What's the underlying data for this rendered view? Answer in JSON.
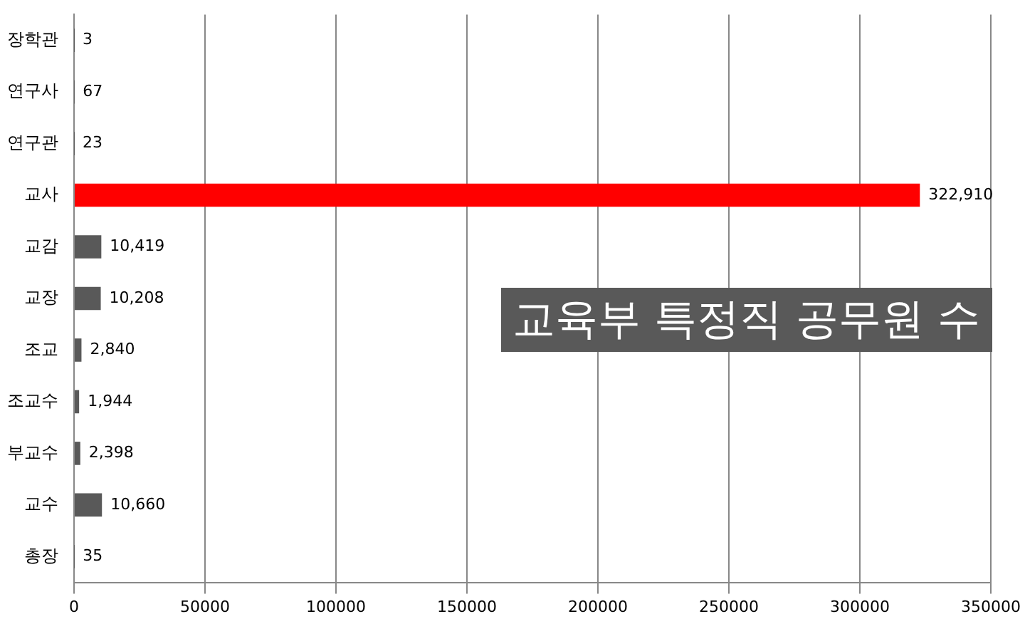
{
  "chart_data": {
    "type": "bar",
    "orientation": "horizontal",
    "title": "교육부 특정직 공무원 수",
    "categories": [
      "장학관",
      "연구사",
      "연구관",
      "교사",
      "교감",
      "교장",
      "조교",
      "조교수",
      "부교수",
      "교수",
      "총장"
    ],
    "values": [
      3,
      67,
      23,
      322910,
      10419,
      10208,
      2840,
      1944,
      2398,
      10660,
      35
    ],
    "value_labels": [
      "3",
      "67",
      "23",
      "322,910",
      "10,419",
      "10,208",
      "2,840",
      "1,944",
      "2,398",
      "10,660",
      "35"
    ],
    "colors": [
      "#595959",
      "#595959",
      "#595959",
      "#ff0000",
      "#595959",
      "#595959",
      "#595959",
      "#595959",
      "#595959",
      "#595959",
      "#595959"
    ],
    "xlim": [
      0,
      350000
    ],
    "xticks": [
      0,
      50000,
      100000,
      150000,
      200000,
      250000,
      300000,
      350000
    ],
    "grid": "x",
    "legend": false
  }
}
